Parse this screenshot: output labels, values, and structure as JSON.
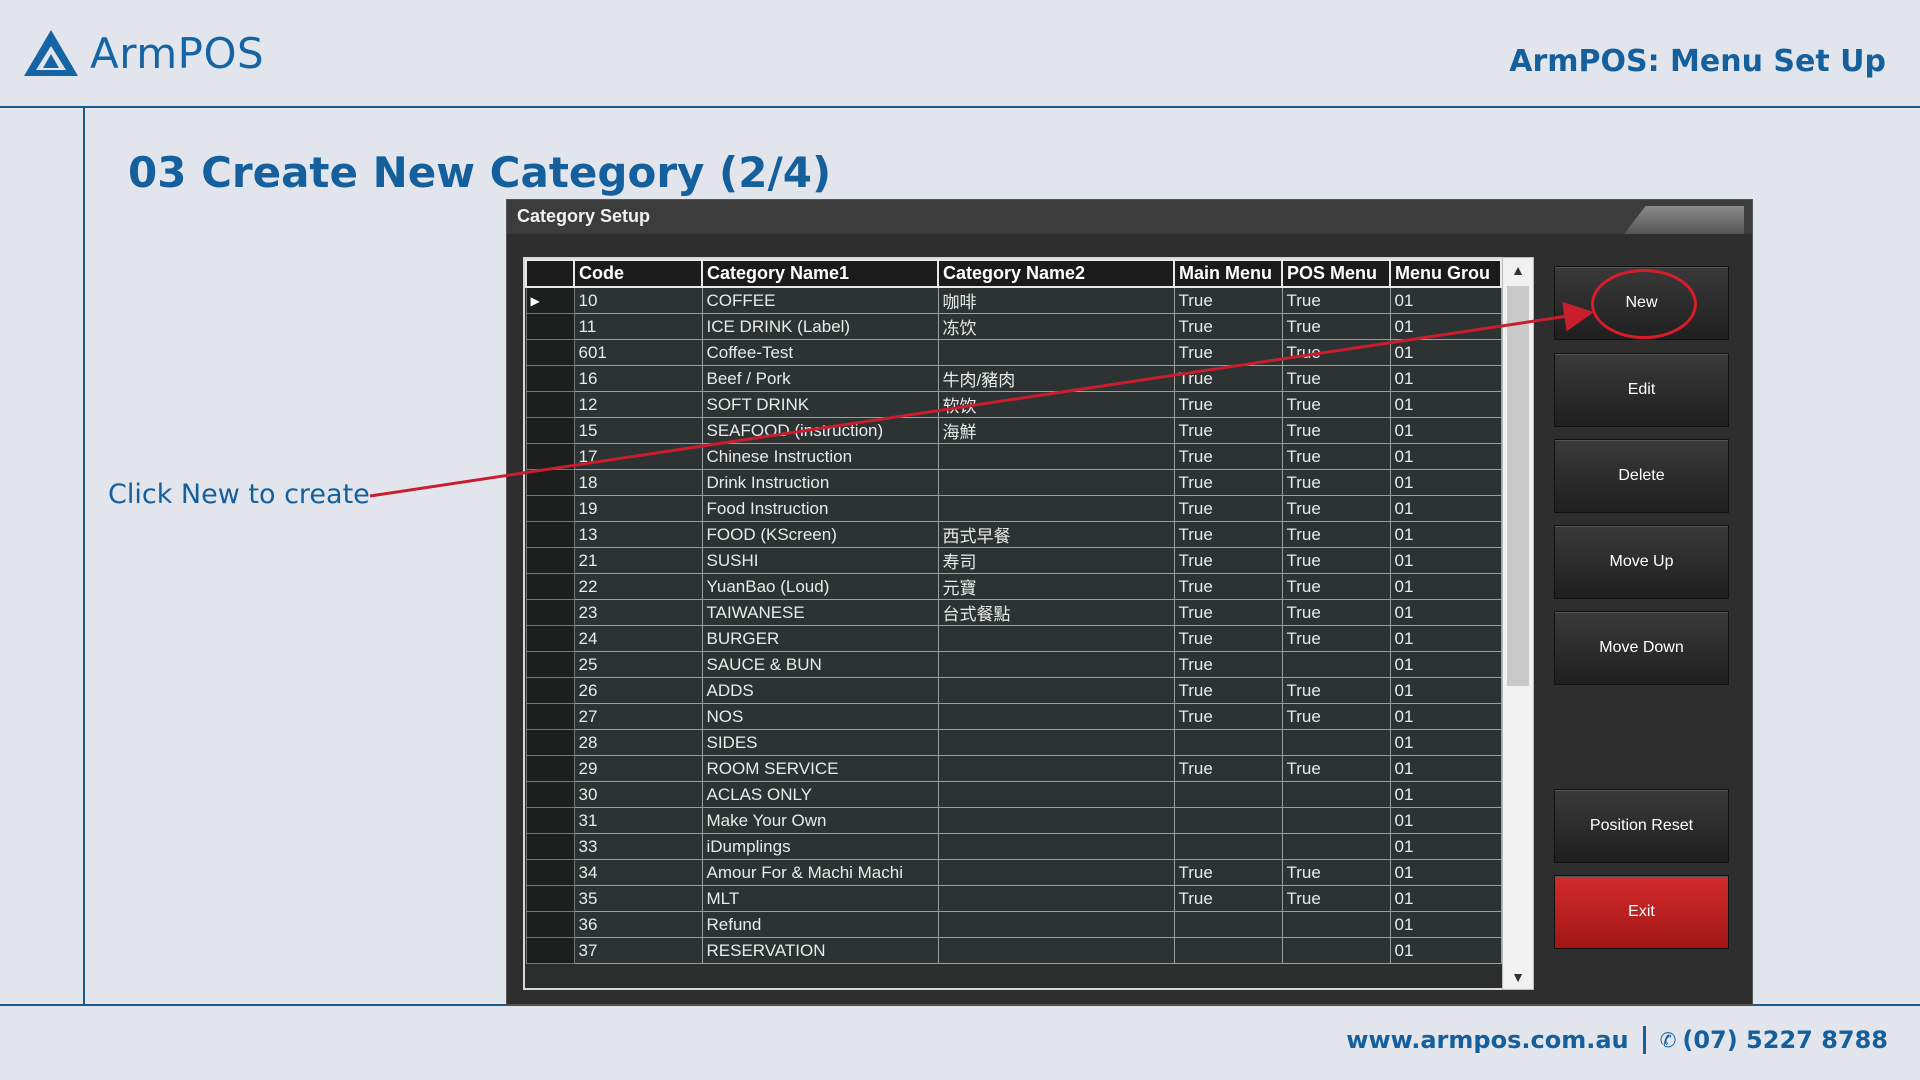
{
  "header": {
    "logo_text": "ArmPOS",
    "title": "ArmPOS: Menu Set Up"
  },
  "slide": {
    "title": "03 Create New Category (2/4)",
    "callout": "Click New to create"
  },
  "footer": {
    "website": "www.armpos.com.au",
    "phone": "(07) 5227 8788"
  },
  "window": {
    "title": "Category Setup",
    "columns": [
      "Code",
      "Category Name1",
      "Category Name2",
      "Main Menu",
      "POS Menu",
      "Menu Grou"
    ],
    "rows": [
      [
        "10",
        "COFFEE",
        "咖啡",
        "True",
        "True",
        "01"
      ],
      [
        "11",
        "ICE DRINK (Label)",
        "冻饮",
        "True",
        "True",
        "01"
      ],
      [
        "601",
        "Coffee-Test",
        "",
        "True",
        "True",
        "01"
      ],
      [
        "16",
        "Beef / Pork",
        "牛肉/豬肉",
        "True",
        "True",
        "01"
      ],
      [
        "12",
        "SOFT DRINK",
        "软饮",
        "True",
        "True",
        "01"
      ],
      [
        "15",
        "SEAFOOD (instruction)",
        "海鮮",
        "True",
        "True",
        "01"
      ],
      [
        "17",
        "Chinese Instruction",
        "",
        "True",
        "True",
        "01"
      ],
      [
        "18",
        "Drink Instruction",
        "",
        "True",
        "True",
        "01"
      ],
      [
        "19",
        "Food Instruction",
        "",
        "True",
        "True",
        "01"
      ],
      [
        "13",
        "FOOD (KScreen)",
        "西式早餐",
        "True",
        "True",
        "01"
      ],
      [
        "21",
        "SUSHI",
        "寿司",
        "True",
        "True",
        "01"
      ],
      [
        "22",
        "YuanBao (Loud)",
        "元寶",
        "True",
        "True",
        "01"
      ],
      [
        "23",
        "TAIWANESE",
        "台式餐點",
        "True",
        "True",
        "01"
      ],
      [
        "24",
        "BURGER",
        "",
        "True",
        "True",
        "01"
      ],
      [
        "25",
        "SAUCE & BUN",
        "",
        "True",
        "",
        "01"
      ],
      [
        "26",
        "ADDS",
        "",
        "True",
        "True",
        "01"
      ],
      [
        "27",
        "NOS",
        "",
        "True",
        "True",
        "01"
      ],
      [
        "28",
        "SIDES",
        "",
        "",
        "",
        "01"
      ],
      [
        "29",
        "ROOM SERVICE",
        "",
        "True",
        "True",
        "01"
      ],
      [
        "30",
        "ACLAS ONLY",
        "",
        "",
        "",
        "01"
      ],
      [
        "31",
        "Make Your Own",
        "",
        "",
        "",
        "01"
      ],
      [
        "33",
        "iDumplings",
        "",
        "",
        "",
        "01"
      ],
      [
        "34",
        "Amour For & Machi Machi",
        "",
        "True",
        "True",
        "01"
      ],
      [
        "35",
        "MLT",
        "",
        "True",
        "True",
        "01"
      ],
      [
        "36",
        "Refund",
        "",
        "",
        "",
        "01"
      ],
      [
        "37",
        "RESERVATION",
        "",
        "",
        "",
        "01"
      ]
    ],
    "buttons": {
      "new": "New",
      "edit": "Edit",
      "delete": "Delete",
      "move_up": "Move Up",
      "move_down": "Move Down",
      "position_reset": "Position Reset",
      "exit": "Exit"
    }
  },
  "colors": {
    "brand": "#15609c",
    "accent_red": "#d91b2a",
    "exit_button": "#c12020"
  },
  "icons": {
    "logo": "triangle-logo-icon",
    "row_pointer": "triangle-right-icon",
    "phone": "phone-icon"
  }
}
